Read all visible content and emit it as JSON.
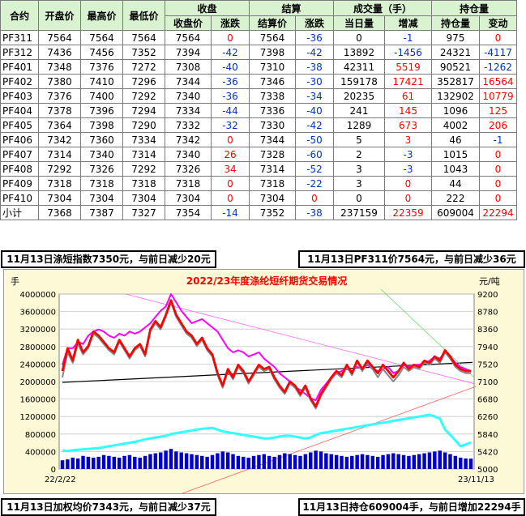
{
  "table": {
    "group_headers": {
      "settle_close": "收盘",
      "settle": "结算",
      "volume": "成交量（手）",
      "oi": "持仓量"
    },
    "col_headers": [
      "合约",
      "开盘价",
      "最高价",
      "最低价",
      "收盘价",
      "涨跌",
      "结算价",
      "涨跌",
      "当日量",
      "增减",
      "持仓量",
      "变动"
    ],
    "rows": [
      {
        "code": "PF311",
        "open": "7564",
        "high": "7564",
        "low": "7564",
        "close": "7564",
        "chg": "0",
        "settle": "7564",
        "schg": "-36",
        "vol": "0",
        "vchg": "-1",
        "oi": "975",
        "oichg": "0"
      },
      {
        "code": "PF312",
        "open": "7436",
        "high": "7456",
        "low": "7352",
        "close": "7394",
        "chg": "-42",
        "settle": "7398",
        "schg": "-42",
        "vol": "13892",
        "vchg": "-1456",
        "oi": "24321",
        "oichg": "-4117"
      },
      {
        "code": "PF401",
        "open": "7348",
        "high": "7376",
        "low": "7272",
        "close": "7308",
        "chg": "-40",
        "settle": "7310",
        "schg": "-38",
        "vol": "42311",
        "vchg": "5519",
        "oi": "90521",
        "oichg": "-1262"
      },
      {
        "code": "PF402",
        "open": "7380",
        "high": "7410",
        "low": "7296",
        "close": "7344",
        "chg": "-36",
        "settle": "7346",
        "schg": "-30",
        "vol": "159178",
        "vchg": "17421",
        "oi": "352817",
        "oichg": "16564"
      },
      {
        "code": "PF403",
        "open": "7376",
        "high": "7400",
        "low": "7292",
        "close": "7340",
        "chg": "-36",
        "settle": "7338",
        "schg": "-34",
        "vol": "20235",
        "vchg": "61",
        "oi": "132902",
        "oichg": "10779"
      },
      {
        "code": "PF404",
        "open": "7378",
        "high": "7396",
        "low": "7294",
        "close": "7334",
        "chg": "-44",
        "settle": "7336",
        "schg": "-40",
        "vol": "241",
        "vchg": "145",
        "oi": "1096",
        "oichg": "125"
      },
      {
        "code": "PF405",
        "open": "7364",
        "high": "7398",
        "low": "7290",
        "close": "7332",
        "chg": "-32",
        "settle": "7330",
        "schg": "-42",
        "vol": "1289",
        "vchg": "673",
        "oi": "4002",
        "oichg": "206"
      },
      {
        "code": "PF406",
        "open": "7342",
        "high": "7360",
        "low": "7334",
        "close": "7342",
        "chg": "0",
        "settle": "7344",
        "schg": "-50",
        "vol": "5",
        "vchg": "3",
        "oi": "46",
        "oichg": "-1"
      },
      {
        "code": "PF407",
        "open": "7314",
        "high": "7340",
        "low": "7314",
        "close": "7340",
        "chg": "26",
        "settle": "7328",
        "schg": "-60",
        "vol": "2",
        "vchg": "-3",
        "oi": "1015",
        "oichg": "0"
      },
      {
        "code": "PF408",
        "open": "7292",
        "high": "7326",
        "low": "7292",
        "close": "7326",
        "chg": "34",
        "settle": "7314",
        "schg": "-52",
        "vol": "3",
        "vchg": "-3",
        "oi": "1043",
        "oichg": "0"
      },
      {
        "code": "PF409",
        "open": "7318",
        "high": "7318",
        "low": "7318",
        "close": "7318",
        "chg": "0",
        "settle": "7318",
        "schg": "-22",
        "vol": "3",
        "vchg": "0",
        "oi": "44",
        "oichg": "0"
      },
      {
        "code": "PF410",
        "open": "7304",
        "high": "7304",
        "low": "7304",
        "close": "7304",
        "chg": "0",
        "settle": "7304",
        "schg": "0",
        "vol": "0",
        "vchg": "0",
        "oi": "222",
        "oichg": "0"
      },
      {
        "code": "小计",
        "open": "7368",
        "high": "7387",
        "low": "7327",
        "close": "7354",
        "chg": "-14",
        "settle": "7352",
        "schg": "-38",
        "vol": "237159",
        "vchg": "22359",
        "oi": "609004",
        "oichg": "22294"
      }
    ]
  },
  "notes": {
    "index": "11月13日涤短指数7350元，与前日减少20元",
    "pf311": "11月13日PF311价7564元，与前日减少36元",
    "wavg": "11月13日加权均价7343元，与前日减少37元",
    "oi": "11月13日持仓609004手，与前日增加22294手"
  },
  "colors": {
    "price": "#ff0000",
    "index": "#ff00ff",
    "oi": "#33ffff",
    "volume": "#0000cc",
    "settle": "#888888",
    "trend": "#000000",
    "title": "#ff0000",
    "chart_bg": "#fdf8d5",
    "header_bg": "#d9f2d0",
    "up": "#ff0000",
    "down": "#0033cc"
  },
  "chart_data": {
    "type": "line",
    "title": "2022/23年度涤纶短纤期货交易情况",
    "left_unit": "手",
    "right_unit": "元/吨",
    "left_ticks": [
      "4000000",
      "3600000",
      "3200000",
      "2800000",
      "2400000",
      "2000000",
      "1600000",
      "1200000",
      "800000",
      "400000",
      "0"
    ],
    "right_ticks": [
      "9200",
      "8780",
      "8360",
      "7940",
      "7520",
      "7100",
      "6680",
      "6260",
      "5840",
      "5420",
      "5000"
    ],
    "left_ylim": [
      0,
      4000000
    ],
    "right_ylim": [
      5000,
      9200
    ],
    "x_start": "22/2/22",
    "x_end": "23/11/13",
    "n_points": 80,
    "series": [
      {
        "name": "",
        "axis": "right",
        "color": "#ff0000",
        "values": [
          7350,
          7900,
          7600,
          8100,
          7800,
          7950,
          8300,
          8200,
          8050,
          7900,
          7800,
          8100,
          7900,
          7700,
          7900,
          8000,
          7750,
          8350,
          8550,
          8400,
          8700,
          9050,
          8700,
          8500,
          8300,
          8200,
          8000,
          8150,
          7900,
          7750,
          7300,
          7000,
          7400,
          7200,
          7500,
          7350,
          7100,
          7300,
          7500,
          7400,
          7450,
          7200,
          7000,
          6850,
          7100,
          7000,
          6800,
          7000,
          6700,
          6500,
          6800,
          7000,
          7200,
          7350,
          7250,
          7500,
          7300,
          7600,
          7400,
          7600,
          7450,
          7300,
          7500,
          7350,
          7200,
          7350,
          7550,
          7400,
          7500,
          7450,
          7600,
          7550,
          7700,
          7600,
          7850,
          7700,
          7500,
          7400,
          7350,
          7350
        ]
      },
      {
        "name": "",
        "axis": "right",
        "color": "#ff00ff",
        "values": [
          7500,
          7900,
          7900,
          8050,
          8000,
          8200,
          8300,
          8350,
          8300,
          8200,
          8150,
          8250,
          8200,
          8300,
          8250,
          8300,
          8400,
          8500,
          8650,
          8800,
          8900,
          9200,
          9000,
          8800,
          8650,
          8500,
          8550,
          8600,
          8500,
          8400,
          8300,
          8100,
          7900,
          7800,
          7850,
          7800,
          7700,
          7750,
          7800,
          7650,
          7550,
          7450,
          7300,
          7200,
          7100,
          6950,
          6900,
          6800,
          6700,
          6650,
          6900,
          7050,
          7200,
          7300,
          7350,
          7400,
          7350,
          7450,
          7400,
          7500,
          7400,
          7350,
          7400,
          7450,
          7300,
          7350,
          7500,
          7450,
          7500,
          7500,
          7550,
          7600,
          7700,
          7650,
          7800,
          7700,
          7550,
          7450,
          7400,
          7350
        ]
      },
      {
        "name": "",
        "axis": "right",
        "color": "#888888",
        "values": [
          7200,
          7800,
          7550,
          8000,
          7750,
          7900,
          8250,
          8150,
          8000,
          7850,
          7750,
          8050,
          7850,
          7650,
          7850,
          7950,
          7700,
          8300,
          8500,
          8350,
          8650,
          9000,
          8650,
          8450,
          8250,
          8150,
          7950,
          8100,
          7850,
          7700,
          7250,
          6950,
          7350,
          7150,
          7450,
          7300,
          7050,
          7250,
          7450,
          7350,
          7400,
          7150,
          6950,
          6800,
          7050,
          6950,
          6750,
          6950,
          6650,
          6450,
          6750,
          6950,
          7150,
          7300,
          7200,
          7450,
          7250,
          7550,
          7350,
          7550,
          7400,
          7200,
          7400,
          7250,
          7100,
          7250,
          7450,
          7350,
          7450,
          7400,
          7550,
          7500,
          7650,
          7550,
          7800,
          7650,
          7450,
          7350,
          7300,
          7300
        ]
      },
      {
        "name": "",
        "axis": "left",
        "color": "#33ffff",
        "values": [
          420000,
          410000,
          430000,
          440000,
          450000,
          460000,
          470000,
          480000,
          500000,
          520000,
          540000,
          560000,
          580000,
          600000,
          620000,
          650000,
          680000,
          700000,
          720000,
          740000,
          760000,
          800000,
          820000,
          840000,
          860000,
          880000,
          900000,
          920000,
          930000,
          940000,
          900000,
          860000,
          840000,
          820000,
          800000,
          780000,
          760000,
          740000,
          720000,
          700000,
          700000,
          720000,
          740000,
          760000,
          760000,
          740000,
          720000,
          700000,
          720000,
          780000,
          820000,
          840000,
          860000,
          880000,
          900000,
          920000,
          940000,
          960000,
          980000,
          1000000,
          1020000,
          1040000,
          1060000,
          1080000,
          1100000,
          1120000,
          1140000,
          1160000,
          1180000,
          1200000,
          1220000,
          1240000,
          1200000,
          1150000,
          900000,
          780000,
          650000,
          520000,
          560000,
          609004
        ]
      },
      {
        "name": "",
        "axis": "left",
        "color": "#0000cc",
        "kind": "bar",
        "values": [
          200000,
          220000,
          260000,
          240000,
          300000,
          280000,
          260000,
          280000,
          320000,
          300000,
          280000,
          260000,
          300000,
          320000,
          280000,
          260000,
          300000,
          340000,
          360000,
          380000,
          420000,
          460000,
          400000,
          380000,
          360000,
          340000,
          320000,
          300000,
          280000,
          320000,
          360000,
          400000,
          380000,
          340000,
          300000,
          280000,
          260000,
          300000,
          320000,
          340000,
          300000,
          280000,
          320000,
          360000,
          340000,
          320000,
          300000,
          340000,
          380000,
          420000,
          400000,
          360000,
          340000,
          320000,
          300000,
          280000,
          300000,
          320000,
          340000,
          320000,
          300000,
          280000,
          320000,
          340000,
          360000,
          340000,
          320000,
          300000,
          320000,
          340000,
          360000,
          380000,
          400000,
          420000,
          380000,
          340000,
          300000,
          260000,
          240000,
          237159
        ]
      }
    ]
  }
}
